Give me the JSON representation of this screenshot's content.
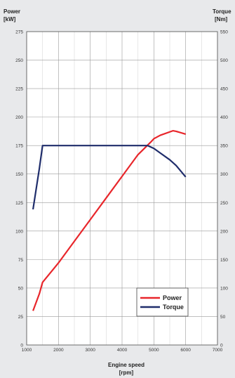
{
  "chart_data": {
    "type": "line",
    "xlabel": "Engine speed",
    "xunit": "[rpm]",
    "ylabel_left": "Power",
    "yunit_left": "[kW]",
    "ylabel_right": "Torque",
    "yunit_right": "[Nm]",
    "xlim": [
      1000,
      7000
    ],
    "ylim_left": [
      0,
      275
    ],
    "ylim_right": [
      0,
      550
    ],
    "x_ticks": [
      1000,
      2000,
      3000,
      4000,
      5000,
      6000,
      7000
    ],
    "y_ticks_left": [
      0,
      25,
      50,
      75,
      100,
      125,
      150,
      175,
      200,
      225,
      250,
      275
    ],
    "y_ticks_right": [
      0,
      50,
      100,
      150,
      200,
      250,
      300,
      350,
      400,
      450,
      500,
      550
    ],
    "grid": true,
    "legend_position": "bottom-right",
    "series": [
      {
        "name": "Power",
        "axis": "left",
        "color": "#e8262b",
        "x": [
          1200,
          1400,
          1500,
          2000,
          2500,
          3000,
          3500,
          4000,
          4500,
          4900,
          5000,
          5200,
          5600,
          5700,
          6000
        ],
        "y": [
          30,
          45,
          55,
          72,
          91,
          110,
          129,
          148,
          167,
          178,
          181,
          184,
          188,
          187.5,
          185
        ]
      },
      {
        "name": "Torque",
        "axis": "right",
        "color": "#1f2d6b",
        "x": [
          1200,
          1400,
          1500,
          2000,
          3000,
          4000,
          4500,
          4800,
          5000,
          5200,
          5500,
          5700,
          6000
        ],
        "y": [
          238,
          310,
          350,
          350,
          350,
          350,
          350,
          350,
          345,
          337,
          325,
          315,
          295
        ]
      }
    ]
  }
}
